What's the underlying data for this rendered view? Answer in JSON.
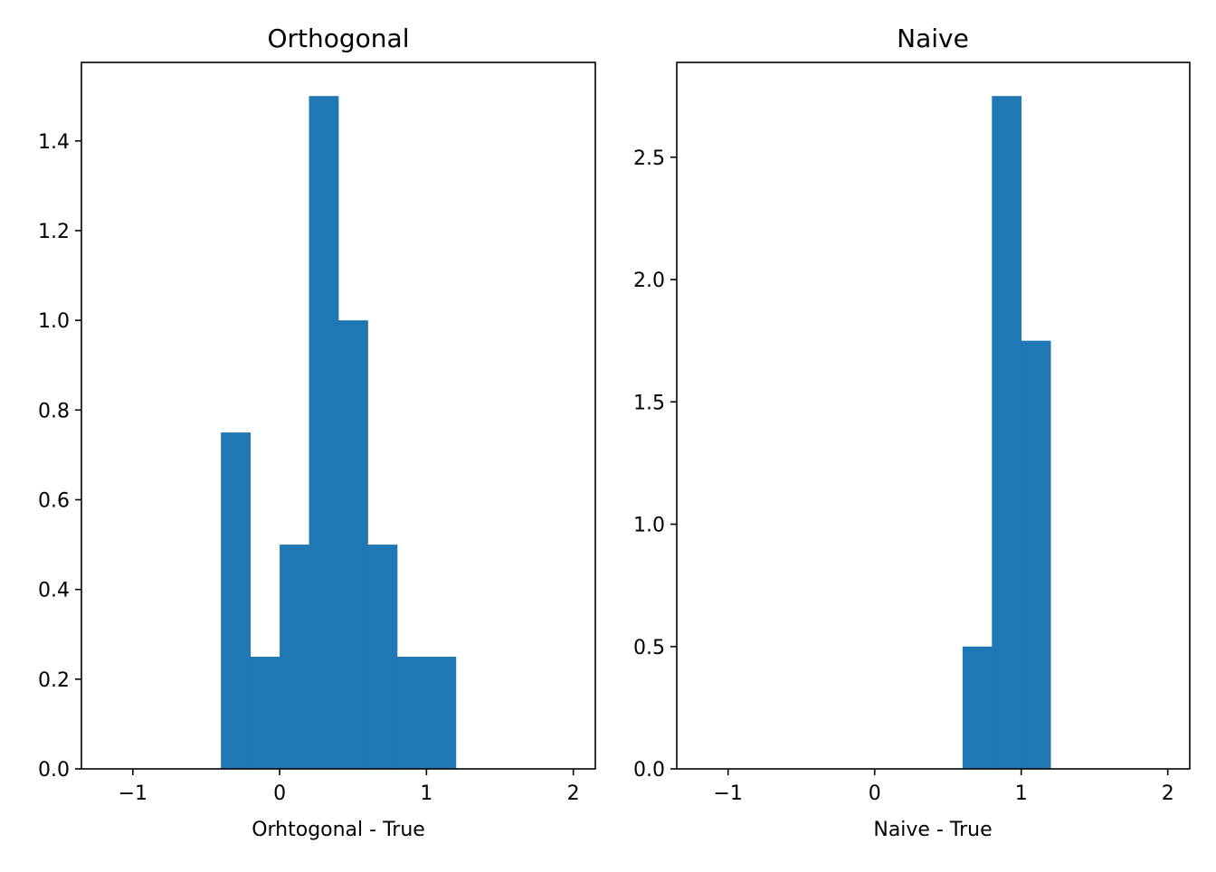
{
  "chart_data": [
    {
      "type": "bar",
      "title": "Orthogonal",
      "xlabel": "Orhtogonal - True",
      "ylabel": "",
      "xlim": [
        -1.35,
        2.15
      ],
      "ylim": [
        0,
        1.575
      ],
      "xticks": [
        -1,
        0,
        1,
        2
      ],
      "xtick_labels": [
        "−1",
        "0",
        "1",
        "2"
      ],
      "yticks": [
        0,
        0.2,
        0.4,
        0.6,
        0.8,
        1.0,
        1.2,
        1.4
      ],
      "ytick_labels": [
        "0.0",
        "0.2",
        "0.4",
        "0.6",
        "0.8",
        "1.0",
        "1.2",
        "1.4"
      ],
      "bin_edges": [
        -0.4,
        -0.2,
        0.0,
        0.2,
        0.4,
        0.6,
        0.8,
        1.0,
        1.2
      ],
      "values": [
        0.75,
        0.25,
        0.5,
        1.5,
        1.0,
        0.5,
        0.25,
        0.25
      ],
      "color": "#1f77b4",
      "grid": false
    },
    {
      "type": "bar",
      "title": "Naive",
      "xlabel": "Naive - True",
      "ylabel": "",
      "xlim": [
        -1.35,
        2.15
      ],
      "ylim": [
        0,
        2.8875
      ],
      "xticks": [
        -1,
        0,
        1,
        2
      ],
      "xtick_labels": [
        "−1",
        "0",
        "1",
        "2"
      ],
      "yticks": [
        0,
        0.5,
        1.0,
        1.5,
        2.0,
        2.5
      ],
      "ytick_labels": [
        "0.0",
        "0.5",
        "1.0",
        "1.5",
        "2.0",
        "2.5"
      ],
      "bin_edges": [
        0.6,
        0.8,
        1.0,
        1.2
      ],
      "values": [
        0.5,
        2.75,
        1.75
      ],
      "color": "#1f77b4",
      "grid": false
    }
  ]
}
